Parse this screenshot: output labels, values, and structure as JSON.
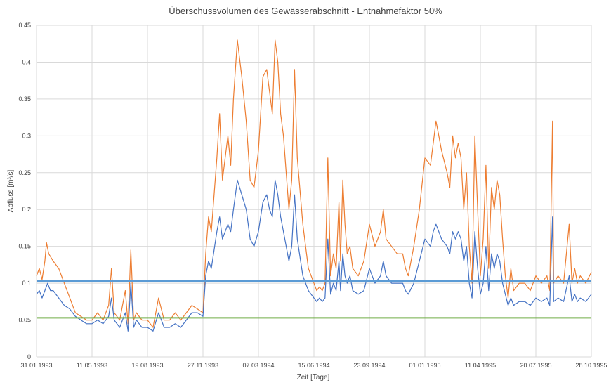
{
  "chart_data": {
    "type": "line",
    "title": "Überschussvolumen des Gewässerabschnitt - Entnahmefaktor 50%",
    "xlabel": "Zeit [Tage]",
    "ylabel": "Abfluss [m³/s]",
    "ylim": [
      0,
      0.45
    ],
    "yticks": [
      "0",
      "0.05",
      "0.1",
      "0.15",
      "0.2",
      "0.25",
      "0.3",
      "0.35",
      "0.4",
      "0.45"
    ],
    "xticks": [
      "31.01.1993",
      "11.05.1993",
      "19.08.1993",
      "27.11.1993",
      "07.03.1994",
      "15.06.1994",
      "23.09.1994",
      "01.01.1995",
      "11.04.1995",
      "20.07.1995",
      "28.10.1995"
    ],
    "xlim_day": [
      0,
      1000
    ],
    "grid": true,
    "series": [
      {
        "color": "#ED7D31",
        "points": [
          [
            0,
            0.11
          ],
          [
            5,
            0.12
          ],
          [
            10,
            0.105
          ],
          [
            15,
            0.13
          ],
          [
            18,
            0.155
          ],
          [
            22,
            0.14
          ],
          [
            30,
            0.13
          ],
          [
            40,
            0.12
          ],
          [
            50,
            0.1
          ],
          [
            60,
            0.08
          ],
          [
            70,
            0.06
          ],
          [
            80,
            0.055
          ],
          [
            90,
            0.05
          ],
          [
            100,
            0.05
          ],
          [
            110,
            0.06
          ],
          [
            120,
            0.05
          ],
          [
            130,
            0.07
          ],
          [
            135,
            0.12
          ],
          [
            140,
            0.06
          ],
          [
            150,
            0.05
          ],
          [
            160,
            0.09
          ],
          [
            165,
            0.045
          ],
          [
            170,
            0.145
          ],
          [
            175,
            0.05
          ],
          [
            180,
            0.06
          ],
          [
            190,
            0.05
          ],
          [
            200,
            0.05
          ],
          [
            210,
            0.04
          ],
          [
            220,
            0.08
          ],
          [
            230,
            0.05
          ],
          [
            240,
            0.05
          ],
          [
            250,
            0.06
          ],
          [
            260,
            0.05
          ],
          [
            270,
            0.06
          ],
          [
            280,
            0.07
          ],
          [
            290,
            0.065
          ],
          [
            300,
            0.06
          ],
          [
            305,
            0.14
          ],
          [
            310,
            0.19
          ],
          [
            315,
            0.17
          ],
          [
            325,
            0.27
          ],
          [
            330,
            0.33
          ],
          [
            335,
            0.24
          ],
          [
            345,
            0.3
          ],
          [
            350,
            0.26
          ],
          [
            355,
            0.35
          ],
          [
            362,
            0.43
          ],
          [
            370,
            0.38
          ],
          [
            378,
            0.32
          ],
          [
            385,
            0.24
          ],
          [
            392,
            0.23
          ],
          [
            400,
            0.28
          ],
          [
            408,
            0.38
          ],
          [
            415,
            0.39
          ],
          [
            420,
            0.36
          ],
          [
            425,
            0.33
          ],
          [
            430,
            0.43
          ],
          [
            435,
            0.4
          ],
          [
            440,
            0.33
          ],
          [
            445,
            0.3
          ],
          [
            450,
            0.25
          ],
          [
            455,
            0.2
          ],
          [
            460,
            0.24
          ],
          [
            465,
            0.39
          ],
          [
            470,
            0.27
          ],
          [
            480,
            0.18
          ],
          [
            490,
            0.12
          ],
          [
            500,
            0.1
          ],
          [
            505,
            0.09
          ],
          [
            510,
            0.095
          ],
          [
            515,
            0.09
          ],
          [
            520,
            0.1
          ],
          [
            525,
            0.27
          ],
          [
            530,
            0.11
          ],
          [
            535,
            0.14
          ],
          [
            540,
            0.12
          ],
          [
            545,
            0.21
          ],
          [
            548,
            0.13
          ],
          [
            552,
            0.24
          ],
          [
            556,
            0.18
          ],
          [
            560,
            0.14
          ],
          [
            565,
            0.15
          ],
          [
            570,
            0.12
          ],
          [
            580,
            0.11
          ],
          [
            590,
            0.13
          ],
          [
            600,
            0.18
          ],
          [
            610,
            0.15
          ],
          [
            620,
            0.17
          ],
          [
            625,
            0.2
          ],
          [
            630,
            0.16
          ],
          [
            640,
            0.15
          ],
          [
            650,
            0.14
          ],
          [
            660,
            0.14
          ],
          [
            665,
            0.12
          ],
          [
            670,
            0.11
          ],
          [
            680,
            0.15
          ],
          [
            690,
            0.2
          ],
          [
            700,
            0.27
          ],
          [
            710,
            0.26
          ],
          [
            715,
            0.29
          ],
          [
            720,
            0.32
          ],
          [
            725,
            0.3
          ],
          [
            730,
            0.28
          ],
          [
            740,
            0.25
          ],
          [
            745,
            0.23
          ],
          [
            750,
            0.3
          ],
          [
            755,
            0.27
          ],
          [
            760,
            0.29
          ],
          [
            765,
            0.27
          ],
          [
            770,
            0.2
          ],
          [
            775,
            0.25
          ],
          [
            780,
            0.15
          ],
          [
            785,
            0.1
          ],
          [
            790,
            0.3
          ],
          [
            795,
            0.2
          ],
          [
            800,
            0.11
          ],
          [
            805,
            0.16
          ],
          [
            810,
            0.26
          ],
          [
            815,
            0.12
          ],
          [
            820,
            0.23
          ],
          [
            825,
            0.2
          ],
          [
            830,
            0.24
          ],
          [
            835,
            0.22
          ],
          [
            840,
            0.16
          ],
          [
            845,
            0.11
          ],
          [
            850,
            0.08
          ],
          [
            855,
            0.12
          ],
          [
            860,
            0.09
          ],
          [
            870,
            0.1
          ],
          [
            880,
            0.1
          ],
          [
            890,
            0.09
          ],
          [
            900,
            0.11
          ],
          [
            910,
            0.1
          ],
          [
            920,
            0.11
          ],
          [
            925,
            0.09
          ],
          [
            930,
            0.32
          ],
          [
            932,
            0.1
          ],
          [
            940,
            0.11
          ],
          [
            950,
            0.1
          ],
          [
            960,
            0.18
          ],
          [
            965,
            0.1
          ],
          [
            970,
            0.12
          ],
          [
            975,
            0.1
          ],
          [
            980,
            0.11
          ],
          [
            990,
            0.1
          ],
          [
            1000,
            0.115
          ]
        ]
      },
      {
        "color": "#4472C4",
        "points": [
          [
            0,
            0.085
          ],
          [
            5,
            0.09
          ],
          [
            10,
            0.08
          ],
          [
            15,
            0.09
          ],
          [
            20,
            0.1
          ],
          [
            25,
            0.09
          ],
          [
            30,
            0.09
          ],
          [
            40,
            0.08
          ],
          [
            50,
            0.07
          ],
          [
            60,
            0.065
          ],
          [
            70,
            0.055
          ],
          [
            80,
            0.05
          ],
          [
            90,
            0.045
          ],
          [
            100,
            0.045
          ],
          [
            110,
            0.05
          ],
          [
            120,
            0.045
          ],
          [
            130,
            0.055
          ],
          [
            135,
            0.08
          ],
          [
            140,
            0.05
          ],
          [
            150,
            0.04
          ],
          [
            160,
            0.06
          ],
          [
            165,
            0.035
          ],
          [
            170,
            0.1
          ],
          [
            175,
            0.04
          ],
          [
            180,
            0.05
          ],
          [
            190,
            0.04
          ],
          [
            200,
            0.04
          ],
          [
            210,
            0.035
          ],
          [
            220,
            0.06
          ],
          [
            230,
            0.04
          ],
          [
            240,
            0.04
          ],
          [
            250,
            0.045
          ],
          [
            260,
            0.04
          ],
          [
            270,
            0.05
          ],
          [
            280,
            0.06
          ],
          [
            290,
            0.06
          ],
          [
            300,
            0.055
          ],
          [
            305,
            0.11
          ],
          [
            310,
            0.13
          ],
          [
            315,
            0.12
          ],
          [
            325,
            0.17
          ],
          [
            330,
            0.19
          ],
          [
            335,
            0.16
          ],
          [
            345,
            0.18
          ],
          [
            350,
            0.17
          ],
          [
            355,
            0.2
          ],
          [
            362,
            0.24
          ],
          [
            370,
            0.22
          ],
          [
            378,
            0.2
          ],
          [
            385,
            0.16
          ],
          [
            392,
            0.15
          ],
          [
            400,
            0.17
          ],
          [
            408,
            0.21
          ],
          [
            415,
            0.22
          ],
          [
            420,
            0.2
          ],
          [
            425,
            0.19
          ],
          [
            430,
            0.24
          ],
          [
            435,
            0.22
          ],
          [
            440,
            0.19
          ],
          [
            445,
            0.17
          ],
          [
            450,
            0.15
          ],
          [
            455,
            0.13
          ],
          [
            460,
            0.15
          ],
          [
            465,
            0.22
          ],
          [
            470,
            0.16
          ],
          [
            480,
            0.11
          ],
          [
            490,
            0.09
          ],
          [
            500,
            0.08
          ],
          [
            505,
            0.075
          ],
          [
            510,
            0.08
          ],
          [
            515,
            0.075
          ],
          [
            520,
            0.08
          ],
          [
            525,
            0.16
          ],
          [
            530,
            0.085
          ],
          [
            535,
            0.1
          ],
          [
            540,
            0.09
          ],
          [
            545,
            0.13
          ],
          [
            548,
            0.09
          ],
          [
            552,
            0.14
          ],
          [
            556,
            0.11
          ],
          [
            560,
            0.1
          ],
          [
            565,
            0.11
          ],
          [
            570,
            0.09
          ],
          [
            580,
            0.085
          ],
          [
            590,
            0.09
          ],
          [
            600,
            0.12
          ],
          [
            610,
            0.1
          ],
          [
            620,
            0.11
          ],
          [
            625,
            0.13
          ],
          [
            630,
            0.11
          ],
          [
            640,
            0.1
          ],
          [
            650,
            0.1
          ],
          [
            660,
            0.1
          ],
          [
            665,
            0.09
          ],
          [
            670,
            0.085
          ],
          [
            680,
            0.1
          ],
          [
            690,
            0.13
          ],
          [
            700,
            0.16
          ],
          [
            710,
            0.15
          ],
          [
            715,
            0.17
          ],
          [
            720,
            0.18
          ],
          [
            725,
            0.17
          ],
          [
            730,
            0.16
          ],
          [
            740,
            0.15
          ],
          [
            745,
            0.14
          ],
          [
            750,
            0.17
          ],
          [
            755,
            0.16
          ],
          [
            760,
            0.17
          ],
          [
            765,
            0.16
          ],
          [
            770,
            0.13
          ],
          [
            775,
            0.15
          ],
          [
            780,
            0.1
          ],
          [
            785,
            0.08
          ],
          [
            790,
            0.17
          ],
          [
            795,
            0.12
          ],
          [
            800,
            0.085
          ],
          [
            805,
            0.1
          ],
          [
            810,
            0.15
          ],
          [
            815,
            0.09
          ],
          [
            820,
            0.14
          ],
          [
            825,
            0.12
          ],
          [
            830,
            0.14
          ],
          [
            835,
            0.13
          ],
          [
            840,
            0.1
          ],
          [
            845,
            0.085
          ],
          [
            850,
            0.07
          ],
          [
            855,
            0.08
          ],
          [
            860,
            0.07
          ],
          [
            870,
            0.075
          ],
          [
            880,
            0.075
          ],
          [
            890,
            0.07
          ],
          [
            900,
            0.08
          ],
          [
            910,
            0.075
          ],
          [
            920,
            0.08
          ],
          [
            925,
            0.07
          ],
          [
            930,
            0.19
          ],
          [
            932,
            0.075
          ],
          [
            940,
            0.08
          ],
          [
            950,
            0.075
          ],
          [
            960,
            0.11
          ],
          [
            965,
            0.075
          ],
          [
            970,
            0.085
          ],
          [
            975,
            0.075
          ],
          [
            980,
            0.08
          ],
          [
            990,
            0.075
          ],
          [
            1000,
            0.085
          ]
        ]
      }
    ],
    "hlines": [
      {
        "value": 0.103,
        "color": "#5B9BD5"
      },
      {
        "value": 0.053,
        "color": "#70AD47"
      }
    ]
  }
}
